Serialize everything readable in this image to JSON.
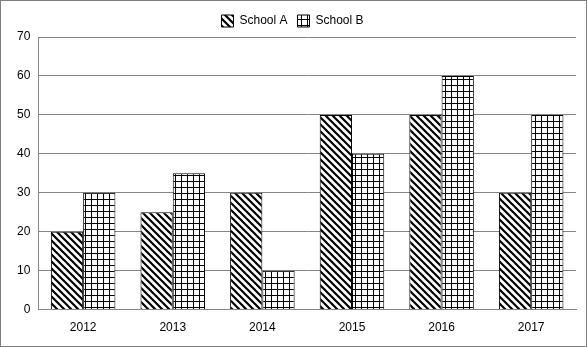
{
  "chart_data": {
    "type": "bar",
    "categories": [
      "2012",
      "2013",
      "2014",
      "2015",
      "2016",
      "2017"
    ],
    "series": [
      {
        "name": "School A",
        "color": "#000000",
        "values": [
          20,
          25,
          30,
          50,
          50,
          30
        ]
      },
      {
        "name": "School B",
        "color": "#000000",
        "values": [
          30,
          35,
          10,
          40,
          60,
          50
        ]
      }
    ],
    "ylim": [
      0,
      70
    ],
    "yticks": [
      0,
      10,
      20,
      30,
      40,
      50,
      60,
      70
    ],
    "grid": true,
    "legend": "top"
  }
}
